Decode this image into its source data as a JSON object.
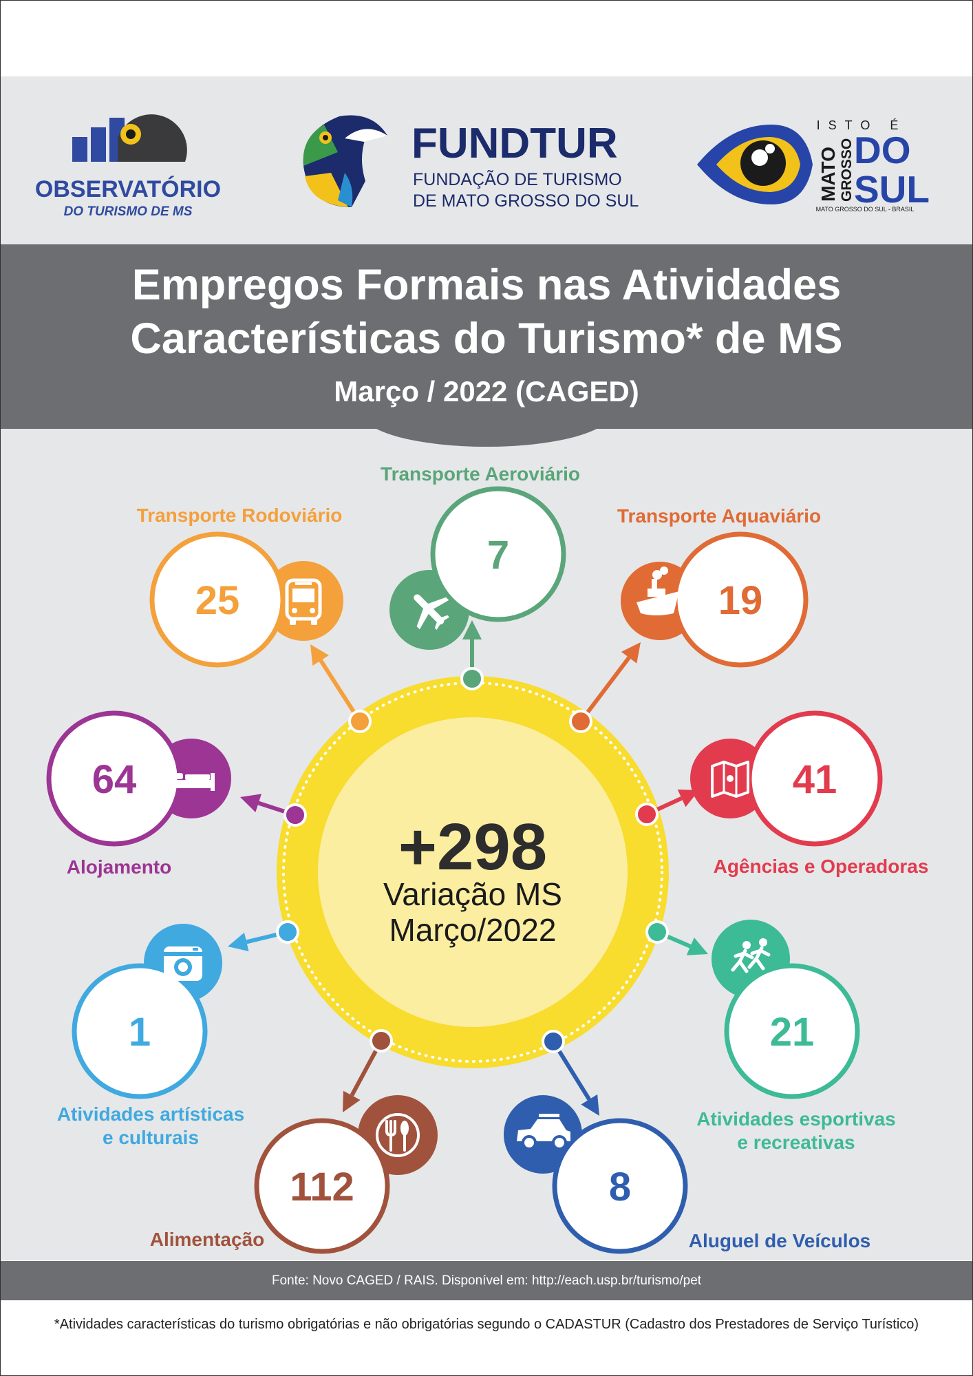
{
  "logos": {
    "observatorio": {
      "line1": "OBSERVATÓRIO",
      "line2": "DO TURISMO DE MS"
    },
    "fundtur": {
      "name": "FUNDTUR",
      "line1": "FUNDAÇÃO DE TURISMO",
      "line2": "DE MATO GROSSO DO SUL"
    },
    "ms": {
      "isto_e": "ISTO É",
      "mato": "MATO",
      "grosso": "GROSSO",
      "do": "DO",
      "sul": "SUL",
      "caption": "MATO GROSSO DO SUL - BRASIL"
    }
  },
  "title": {
    "line1": "Empregos Formais nas Atividades",
    "line2": "Características do Turismo* de MS",
    "subtitle": "Março / 2022 (CAGED)"
  },
  "center": {
    "value": "+298",
    "line1": "Variação MS",
    "line2": "Março/2022"
  },
  "activities": [
    {
      "label": "Transporte Aeroviário",
      "value": 7,
      "color": "#5aa57a",
      "icon": "airplane-icon"
    },
    {
      "label": "Transporte Aquaviário",
      "value": 19,
      "color": "#e06b35",
      "icon": "ship-icon"
    },
    {
      "label": "Agências e Operadoras",
      "value": 41,
      "color": "#e23b4e",
      "icon": "map-icon"
    },
    {
      "label": "Atividades esportivas",
      "label2": "e recreativas",
      "value": 21,
      "color": "#3dba96",
      "icon": "runners-icon"
    },
    {
      "label": "Aluguel de Veículos",
      "value": 8,
      "color": "#2f5eae",
      "icon": "car-icon"
    },
    {
      "label": "Alimentação",
      "value": 112,
      "color": "#a0523d",
      "icon": "cutlery-icon"
    },
    {
      "label": "Atividades artísticas",
      "label2": "e culturais",
      "value": 1,
      "color": "#3fa9e0",
      "icon": "camera-icon"
    },
    {
      "label": "Alojamento",
      "value": 64,
      "color": "#9c3594",
      "icon": "bed-icon"
    },
    {
      "label": "Transporte Rodoviário",
      "value": 25,
      "color": "#f4a03b",
      "icon": "bus-icon"
    }
  ],
  "colors": {
    "header_band": "#6d6e71",
    "background": "#e6e7e8",
    "sun_outer": "#f8dc2e",
    "sun_inner": "#fbeea0",
    "fundtur_blue": "#1b2b6b"
  },
  "footer": {
    "source": "Fonte: Novo CAGED / RAIS. Disponível em: http://each.usp.br/turismo/pet",
    "footnote": "*Atividades características do turismo obrigatórias e não obrigatórias segundo o CADASTUR (Cadastro dos Prestadores de Serviço Turístico)"
  }
}
